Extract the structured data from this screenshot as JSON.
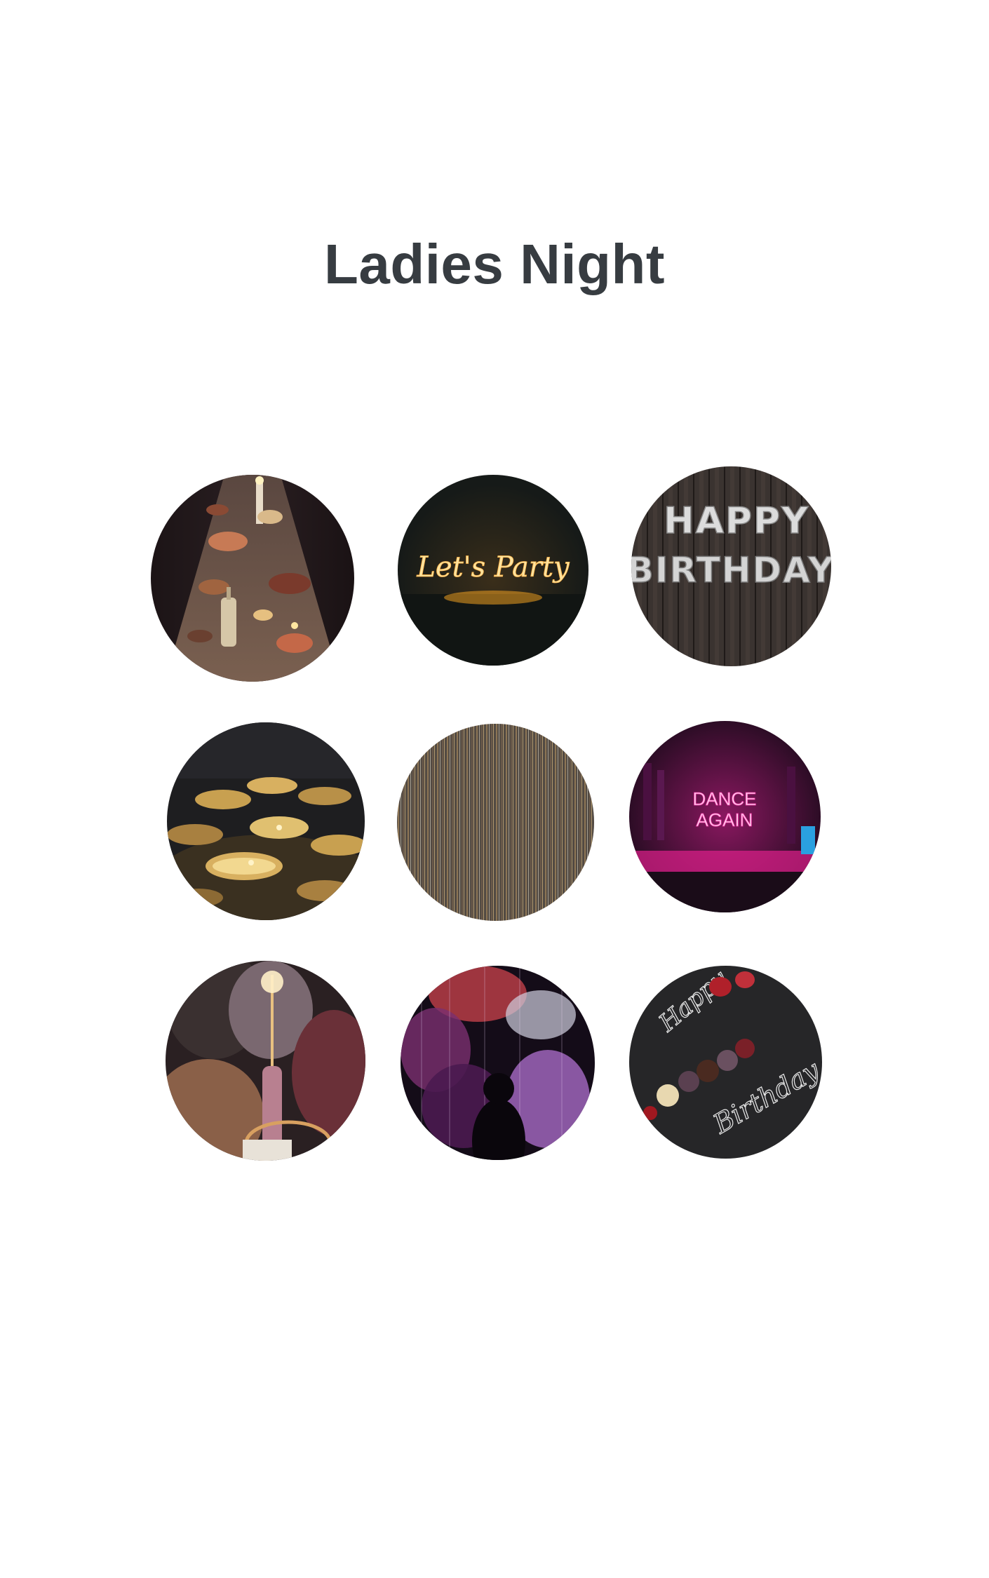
{
  "page": {
    "title": "Ladies Night",
    "title_color": "#373c41",
    "background": "#ffffff"
  },
  "gallery": {
    "tiles": [
      {
        "label": ""
      },
      {
        "sign_text": "Let's Party"
      },
      {
        "sign_line1": "HAPPY",
        "sign_line2": "BIRTHDAY"
      },
      {
        "label": ""
      },
      {
        "label": ""
      },
      {
        "sign_line1": "DANCE",
        "sign_line2": "AGAIN"
      },
      {
        "label": ""
      },
      {
        "label": ""
      },
      {
        "chalk_line1": "Happy",
        "chalk_line2": "Birthday"
      }
    ]
  }
}
